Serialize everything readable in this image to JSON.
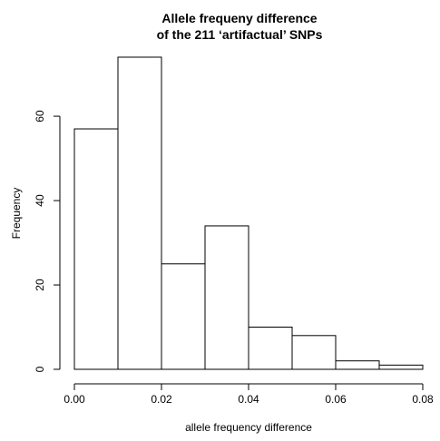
{
  "chart_data": {
    "type": "bar",
    "title_lines": [
      "Allele frequeny difference",
      "of the 211 ‘artifactual’ SNPs"
    ],
    "xlabel": "allele frequency difference",
    "ylabel": "Frequency",
    "bins": [
      {
        "x0": 0.0,
        "x1": 0.01,
        "count": 57
      },
      {
        "x0": 0.01,
        "x1": 0.02,
        "count": 74
      },
      {
        "x0": 0.02,
        "x1": 0.03,
        "count": 25
      },
      {
        "x0": 0.03,
        "x1": 0.04,
        "count": 34
      },
      {
        "x0": 0.04,
        "x1": 0.05,
        "count": 10
      },
      {
        "x0": 0.05,
        "x1": 0.06,
        "count": 8
      },
      {
        "x0": 0.06,
        "x1": 0.07,
        "count": 2
      },
      {
        "x0": 0.07,
        "x1": 0.08,
        "count": 1
      }
    ],
    "xlim": [
      0.0,
      0.08
    ],
    "ylim": [
      0,
      74
    ],
    "xticks": [
      0.0,
      0.02,
      0.04,
      0.06,
      0.08
    ],
    "xtick_labels": [
      "0.00",
      "0.02",
      "0.04",
      "0.06",
      "0.08"
    ],
    "yticks": [
      0,
      20,
      40,
      60
    ],
    "ytick_labels": [
      "0",
      "20",
      "40",
      "60"
    ],
    "grid": false,
    "legend": "none"
  }
}
